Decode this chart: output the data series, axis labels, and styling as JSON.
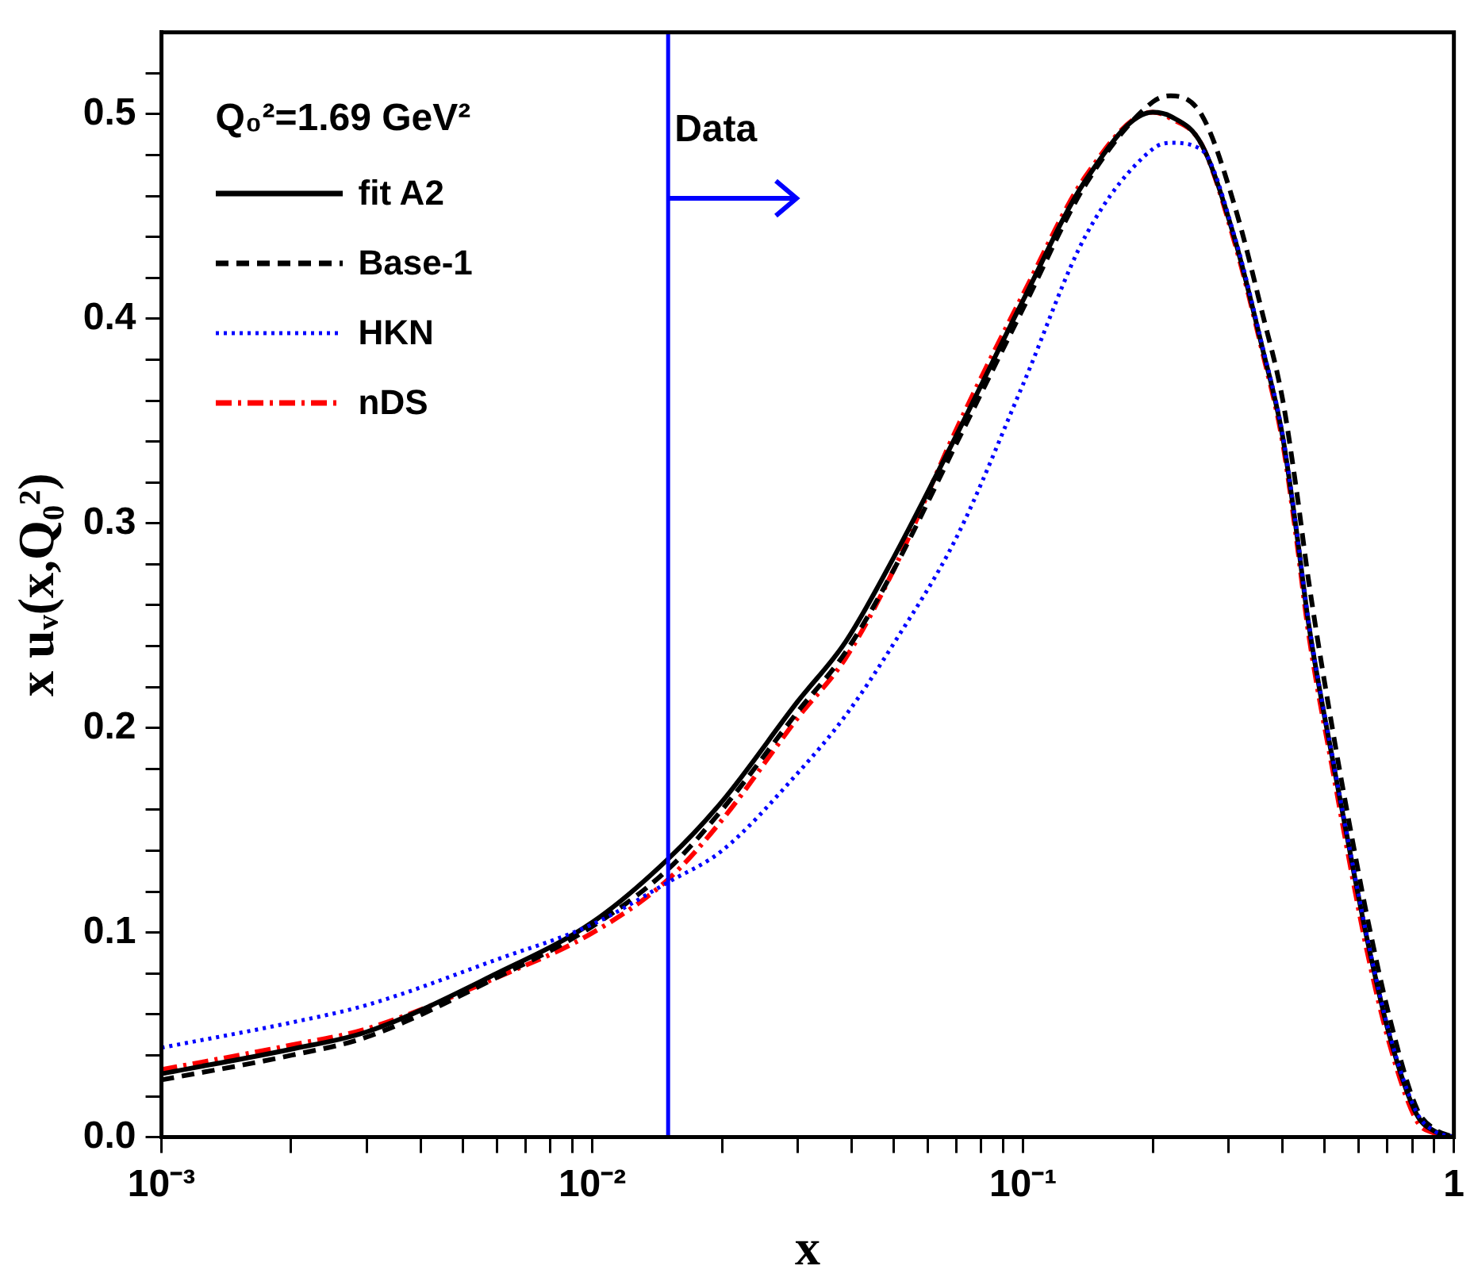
{
  "chart_data": {
    "type": "line",
    "xlabel": "x",
    "ylabel": "x uᵥ(x,Q₀²)",
    "legend_title": "Q₀²=1.69 GeV²",
    "legend": "top left",
    "log": "x",
    "grid": false,
    "x": [
      0.001,
      0.002,
      0.003,
      0.006,
      0.01,
      0.015,
      0.02,
      0.03,
      0.0387,
      0.05,
      0.07,
      0.1,
      0.14,
      0.2,
      0.22,
      0.26,
      0.31,
      0.36,
      0.4,
      0.43,
      0.46,
      0.53,
      0.59,
      0.63,
      0.71,
      0.82,
      0.9,
      1
    ],
    "series": [
      {
        "name": "fit A2",
        "color": "#000000",
        "line_style": "solid",
        "values": [
          0.031,
          0.043,
          0.0515,
          0.08,
          0.105,
          0.136,
          0.164,
          0.213,
          0.242,
          0.283,
          0.343,
          0.409,
          0.468,
          0.501,
          0.499,
          0.485,
          0.439,
          0.385,
          0.343,
          0.298,
          0.251,
          0.178,
          0.126,
          0.096,
          0.049,
          0.011,
          0.003,
          0
        ]
      },
      {
        "name": "Base-1",
        "color": "#000000",
        "line_style": "dashed",
        "values": [
          0.028,
          0.04,
          0.049,
          0.078,
          0.103,
          0.131,
          0.16,
          0.208,
          0.237,
          0.277,
          0.339,
          0.405,
          0.466,
          0.506,
          0.509,
          0.4995,
          0.455,
          0.402,
          0.361,
          0.318,
          0.272,
          0.192,
          0.138,
          0.107,
          0.058,
          0.014,
          0.004,
          0
        ]
      },
      {
        "name": "HKN",
        "color": "#0000ff",
        "line_style": "dotted",
        "values": [
          0.0437,
          0.056,
          0.0646,
          0.0868,
          0.104,
          0.1246,
          0.14,
          0.178,
          0.206,
          0.241,
          0.293,
          0.368,
          0.441,
          0.483,
          0.486,
          0.4825,
          0.44,
          0.386,
          0.344,
          0.299,
          0.252,
          0.179,
          0.127,
          0.097,
          0.05,
          0.012,
          0.003,
          0
        ]
      },
      {
        "name": "nDS",
        "color": "#ff0000",
        "line_style": "dashdot",
        "values": [
          0.033,
          0.045,
          0.053,
          0.078,
          0.0998,
          0.126,
          0.155,
          0.205,
          0.234,
          0.277,
          0.346,
          0.412,
          0.47,
          0.501,
          0.498,
          0.485,
          0.437,
          0.383,
          0.34,
          0.294,
          0.246,
          0.173,
          0.12,
          0.09,
          0.045,
          0.008,
          0.002,
          0
        ]
      }
    ],
    "xlim": [
      0.001,
      1
    ],
    "xticks": [
      {
        "value": 0.001,
        "label": "10⁻³"
      },
      {
        "value": 0.002,
        "label": null
      },
      {
        "value": 0.003,
        "label": null
      },
      {
        "value": 0.004,
        "label": null
      },
      {
        "value": 0.005,
        "label": null
      },
      {
        "value": 0.006,
        "label": null
      },
      {
        "value": 0.007,
        "label": null
      },
      {
        "value": 0.008,
        "label": null
      },
      {
        "value": 0.009,
        "label": null
      },
      {
        "value": 0.01,
        "label": "10⁻²"
      },
      {
        "value": 0.02,
        "label": null
      },
      {
        "value": 0.03,
        "label": null
      },
      {
        "value": 0.04,
        "label": null
      },
      {
        "value": 0.05,
        "label": null
      },
      {
        "value": 0.06,
        "label": null
      },
      {
        "value": 0.07,
        "label": null
      },
      {
        "value": 0.08,
        "label": null
      },
      {
        "value": 0.09,
        "label": null
      },
      {
        "value": 0.1,
        "label": "10⁻¹"
      },
      {
        "value": 0.2,
        "label": null
      },
      {
        "value": 0.3,
        "label": null
      },
      {
        "value": 0.4,
        "label": null
      },
      {
        "value": 0.5,
        "label": null
      },
      {
        "value": 0.6,
        "label": null
      },
      {
        "value": 0.7,
        "label": null
      },
      {
        "value": 0.8,
        "label": null
      },
      {
        "value": 0.9,
        "label": null
      },
      1
    ],
    "ylim": [
      0,
      0.54
    ],
    "yticks": [
      {
        "value": 0,
        "label": "0.0"
      },
      {
        "value": 0.02,
        "label": null
      },
      {
        "value": 0.04,
        "label": null
      },
      {
        "value": 0.06,
        "label": null
      },
      {
        "value": 0.08,
        "label": null
      },
      0.1,
      {
        "value": 0.12,
        "label": null
      },
      {
        "value": 0.14,
        "label": null
      },
      {
        "value": 0.16,
        "label": null
      },
      {
        "value": 0.18,
        "label": null
      },
      0.2,
      {
        "value": 0.22,
        "label": null
      },
      {
        "value": 0.24,
        "label": null
      },
      {
        "value": 0.26,
        "label": null
      },
      {
        "value": 0.28,
        "label": null
      },
      0.3,
      {
        "value": 0.32,
        "label": null
      },
      {
        "value": 0.34,
        "label": null
      },
      {
        "value": 0.36,
        "label": null
      },
      {
        "value": 0.38,
        "label": null
      },
      0.4,
      {
        "value": 0.42,
        "label": null
      },
      {
        "value": 0.44,
        "label": null
      },
      {
        "value": 0.46,
        "label": null
      },
      {
        "value": 0.48,
        "label": null
      },
      0.5,
      {
        "value": 0.52,
        "label": null
      }
    ],
    "ref_lines": [
      {
        "axis": "x",
        "value": 0.015,
        "label": "Data",
        "color": "#0000ff"
      }
    ]
  }
}
